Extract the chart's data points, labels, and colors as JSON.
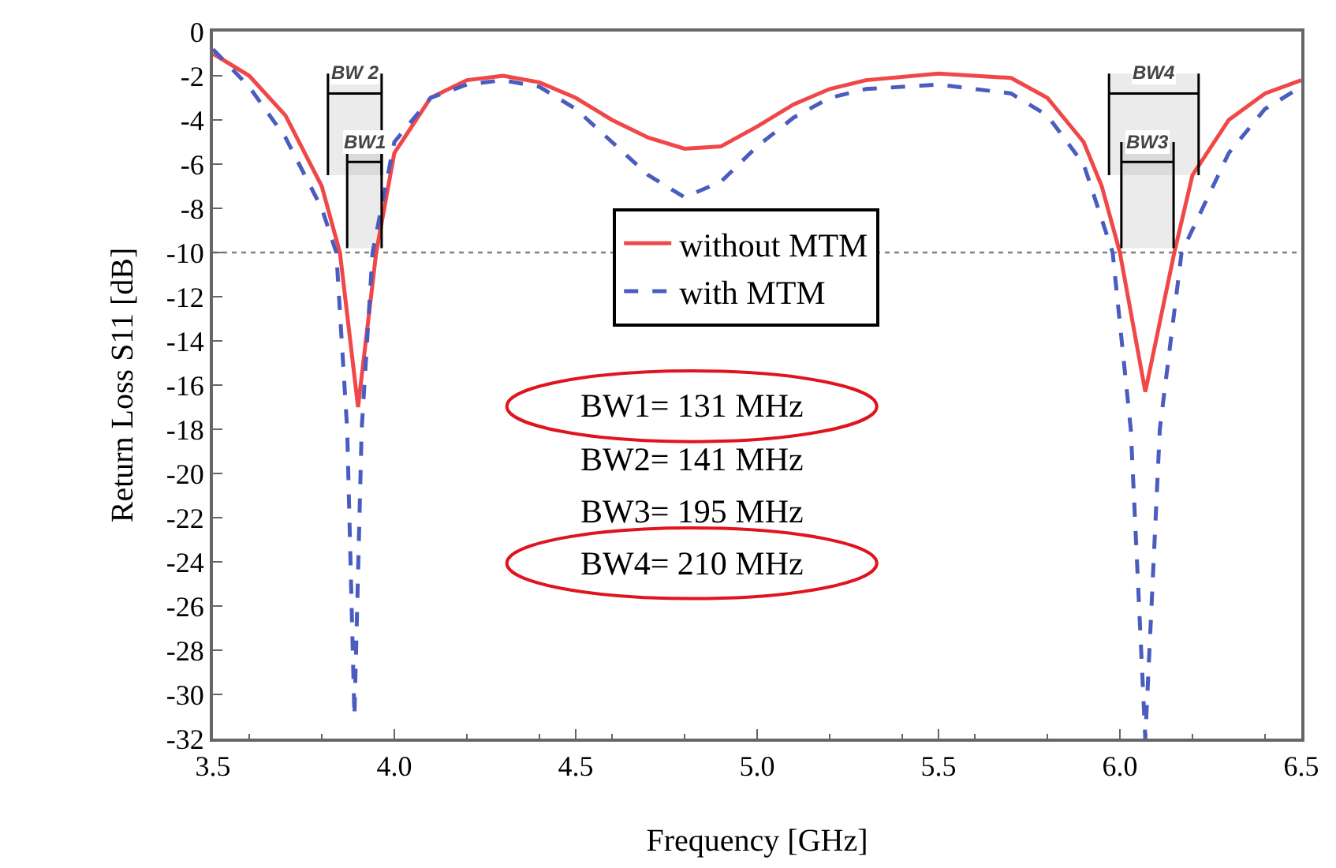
{
  "chart_data": {
    "type": "line",
    "xlabel": "Frequency [GHz]",
    "ylabel": "Return Loss S11 [dB]",
    "xlim": [
      3.5,
      6.5
    ],
    "xticks": [
      3.5,
      {
        "value": 4,
        "label": "4.0"
      },
      4.5,
      {
        "value": 5,
        "label": "5.0"
      },
      5.5,
      {
        "value": 6,
        "label": "6.0"
      },
      6.5
    ],
    "ylim": [
      -32,
      0
    ],
    "yticks": [
      0,
      -2,
      -4,
      -6,
      -8,
      -10,
      -12,
      -14,
      -16,
      -18,
      -20,
      -22,
      -24,
      -26,
      -28,
      -30,
      -32
    ],
    "grid": false,
    "legend": "top",
    "marker": "none",
    "series": [
      {
        "name": "without MTM",
        "color": "#f04848",
        "line_style": "solid",
        "x": [
          3.5,
          3.6,
          3.7,
          3.8,
          3.85,
          3.9,
          3.95,
          4.0,
          4.1,
          4.2,
          4.3,
          4.4,
          4.5,
          4.6,
          4.7,
          4.8,
          4.9,
          5.0,
          5.1,
          5.2,
          5.3,
          5.5,
          5.7,
          5.8,
          5.9,
          5.95,
          6.0,
          6.07,
          6.15,
          6.2,
          6.3,
          6.4,
          6.5
        ],
        "values": [
          -1,
          -2,
          -3.8,
          -7,
          -10,
          -17,
          -10,
          -5.5,
          -3,
          -2.2,
          -2,
          -2.3,
          -3,
          -4,
          -4.8,
          -5.3,
          -5.2,
          -4.3,
          -3.3,
          -2.6,
          -2.2,
          -1.9,
          -2.1,
          -3,
          -5,
          -7,
          -10,
          -16.3,
          -10,
          -6.5,
          -4,
          -2.8,
          -2.2
        ]
      },
      {
        "name": "with MTM",
        "color": "#4a5cc0",
        "line_style": "dashed",
        "x": [
          3.5,
          3.6,
          3.7,
          3.8,
          3.84,
          3.87,
          3.89,
          3.91,
          3.94,
          4.0,
          4.1,
          4.2,
          4.3,
          4.4,
          4.5,
          4.6,
          4.7,
          4.8,
          4.9,
          5.0,
          5.1,
          5.2,
          5.3,
          5.5,
          5.7,
          5.8,
          5.9,
          5.98,
          6.03,
          6.07,
          6.11,
          6.17,
          6.3,
          6.4,
          6.5
        ],
        "values": [
          -0.8,
          -2.5,
          -4.8,
          -8,
          -10,
          -18,
          -31,
          -18,
          -10,
          -5,
          -3,
          -2.4,
          -2.2,
          -2.5,
          -3.5,
          -5,
          -6.5,
          -7.5,
          -6.8,
          -5.2,
          -3.9,
          -3,
          -2.6,
          -2.4,
          -2.8,
          -3.8,
          -6,
          -10,
          -18,
          -32,
          -18,
          -10,
          -5.5,
          -3.5,
          -2.5
        ]
      }
    ],
    "ref_lines": [
      {
        "axis": "y",
        "value": -10,
        "color": "#808080",
        "line_style": "dotted"
      }
    ],
    "bands": [
      {
        "axis": "x",
        "from": 3.817,
        "to": 3.965,
        "label": "BW 2"
      },
      {
        "axis": "x",
        "from": 3.87,
        "to": 3.965,
        "label": "BW1"
      },
      {
        "axis": "x",
        "from": 5.97,
        "to": 6.217,
        "label": "BW4"
      },
      {
        "axis": "x",
        "from": 6.004,
        "to": 6.148,
        "label": "BW3"
      }
    ],
    "annotations": [
      "BW1= 131 MHz",
      "BW2= 141 MHz",
      "BW3= 195 MHz",
      "BW4= 210 MHz"
    ]
  }
}
